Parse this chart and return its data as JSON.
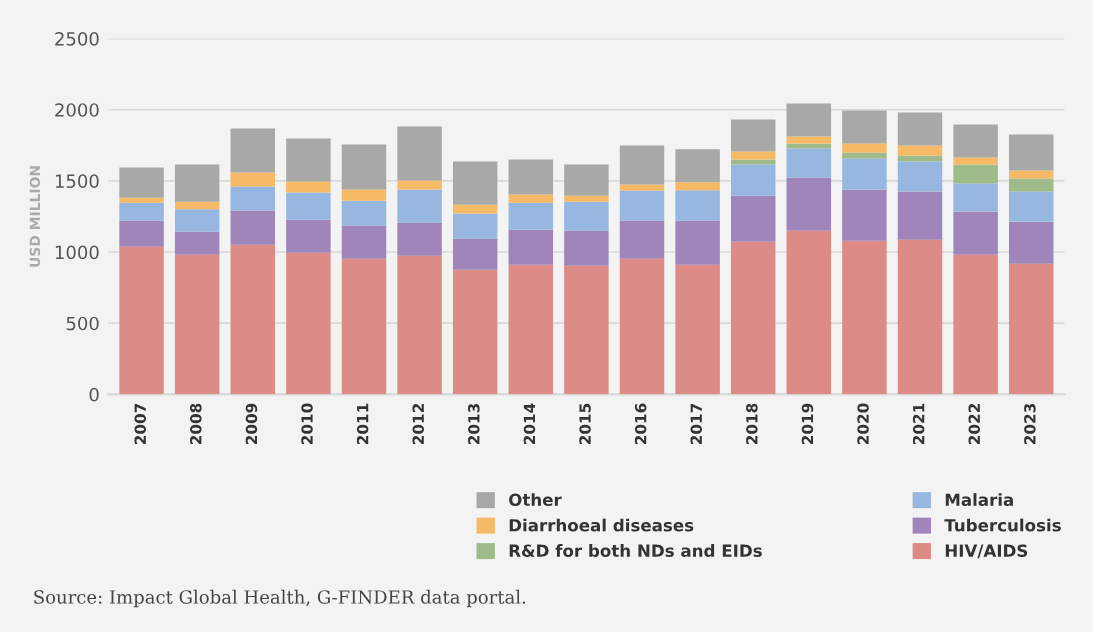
{
  "chart_data": {
    "type": "bar",
    "stacked": true,
    "ylabel": "USD MILLION",
    "categories": [
      "2007",
      "2008",
      "2009",
      "2010",
      "2011",
      "2012",
      "2013",
      "2014",
      "2015",
      "2016",
      "2017",
      "2018",
      "2019",
      "2020",
      "2021",
      "2022",
      "2023"
    ],
    "series": [
      {
        "name": "HIV/AIDS",
        "color": "#dc8b87",
        "values": [
          1037,
          981,
          1051,
          995,
          953,
          974,
          875,
          911,
          904,
          953,
          911,
          1073,
          1150,
          1080,
          1087,
          981,
          918
        ]
      },
      {
        "name": "Tuberculosis",
        "color": "#a085ba",
        "values": [
          183,
          162,
          240,
          232,
          232,
          232,
          219,
          246,
          246,
          267,
          309,
          323,
          373,
          359,
          338,
          303,
          295
        ]
      },
      {
        "name": "Malaria",
        "color": "#97b7e1",
        "values": [
          127,
          157,
          169,
          191,
          176,
          233,
          176,
          190,
          204,
          212,
          214,
          219,
          204,
          218,
          211,
          197,
          212
        ]
      },
      {
        "name": "R&D for both NDs and EIDs",
        "color": "#a0bb8a",
        "values": [
          0,
          0,
          0,
          0,
          0,
          0,
          0,
          0,
          0,
          0,
          null,
          35,
          36,
          42,
          42,
          134,
          91
        ]
      },
      {
        "name": "Diarrhoeal diseases",
        "color": "#f6ba66",
        "values": [
          35,
          54,
          98,
          77,
          78,
          63,
          63,
          57,
          42,
          42,
          56,
          56,
          49,
          64,
          71,
          49,
          57
        ]
      },
      {
        "name": "Other",
        "color": "#a8a8a6",
        "values": [
          212,
          261,
          310,
          303,
          317,
          380,
          303,
          246,
          219,
          274,
          232,
          226,
          232,
          232,
          232,
          232,
          253
        ]
      }
    ],
    "ylim": [
      0,
      2500
    ],
    "yticks": [
      0,
      500,
      1000,
      1500,
      2000,
      2500
    ],
    "grid": "y",
    "legend": "bottom right",
    "annotations": [
      "Source: Impact Global Health, G-FINDER data portal."
    ]
  }
}
